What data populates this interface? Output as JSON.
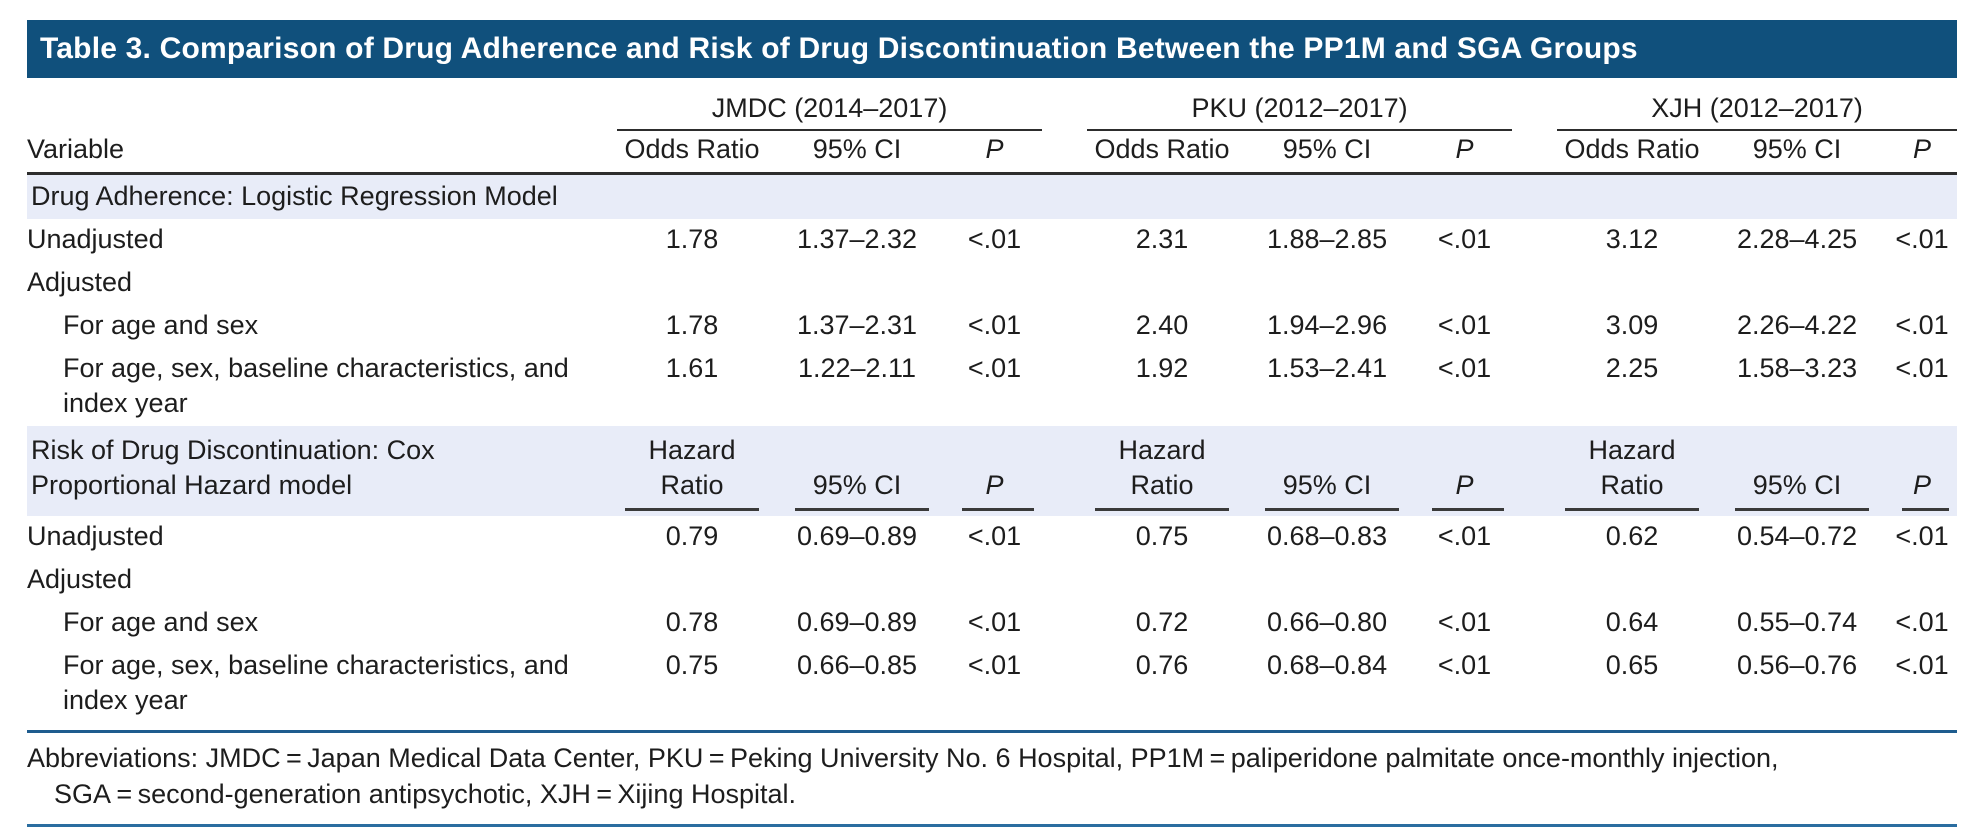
{
  "title": "Table 3. Comparison of Drug Adherence and Risk of Drug Discontinuation Between the PP1M and SGA Groups",
  "colors": {
    "title_bar": "#10507c",
    "section_band": "#e8ecf8",
    "dark_rule": "#2d2d2d",
    "blue_rule": "#1e5c8e"
  },
  "columns": {
    "variable_label": "Variable",
    "groups": [
      {
        "name": "JMDC (2014–2017)",
        "sub": [
          "Odds Ratio",
          "95% CI",
          "P"
        ]
      },
      {
        "name": "PKU (2012–2017)",
        "sub": [
          "Odds Ratio",
          "95% CI",
          "P"
        ]
      },
      {
        "name": "XJH (2012–2017)",
        "sub": [
          "Odds Ratio",
          "95% CI",
          "P"
        ]
      }
    ]
  },
  "sections": [
    {
      "header": "Drug Adherence: Logistic Regression Model",
      "rows": [
        {
          "label": "Unadjusted",
          "values": [
            "1.78",
            "1.37–2.32",
            "<.01",
            "2.31",
            "1.88–2.85",
            "<.01",
            "3.12",
            "2.28–4.25",
            "<.01"
          ]
        },
        {
          "label": "Adjusted",
          "values": []
        },
        {
          "label": "For age and sex",
          "values": [
            "1.78",
            "1.37–2.31",
            "<.01",
            "2.40",
            "1.94–2.96",
            "<.01",
            "3.09",
            "2.26–4.22",
            "<.01"
          ]
        },
        {
          "label": "For age, sex, baseline characteristics, and\nindex year",
          "values": [
            "1.61",
            "1.22–2.11",
            "<.01",
            "1.92",
            "1.53–2.41",
            "<.01",
            "2.25",
            "1.58–3.23",
            "<.01"
          ]
        }
      ]
    },
    {
      "header": "Risk of Drug Discontinuation: Cox\nProportional Hazard model",
      "sub_headers": [
        "Hazard\nRatio",
        "95% CI",
        "P"
      ],
      "rows": [
        {
          "label": "Unadjusted",
          "values": [
            "0.79",
            "0.69–0.89",
            "<.01",
            "0.75",
            "0.68–0.83",
            "<.01",
            "0.62",
            "0.54–0.72",
            "<.01"
          ]
        },
        {
          "label": "Adjusted",
          "values": []
        },
        {
          "label": "For age and sex",
          "values": [
            "0.78",
            "0.69–0.89",
            "<.01",
            "0.72",
            "0.66–0.80",
            "<.01",
            "0.64",
            "0.55–0.74",
            "<.01"
          ]
        },
        {
          "label": "For age, sex, baseline characteristics, and\nindex year",
          "values": [
            "0.75",
            "0.66–0.85",
            "<.01",
            "0.76",
            "0.68–0.84",
            "<.01",
            "0.65",
            "0.56–0.76",
            "<.01"
          ]
        }
      ]
    }
  ],
  "footnote": {
    "line1": "Abbreviations: JMDC = Japan Medical Data Center, PKU = Peking University No. 6 Hospital, PP1M = paliperidone palmitate once-monthly injection,",
    "line2": "SGA = second-generation antipsychotic, XJH = Xijing Hospital."
  }
}
